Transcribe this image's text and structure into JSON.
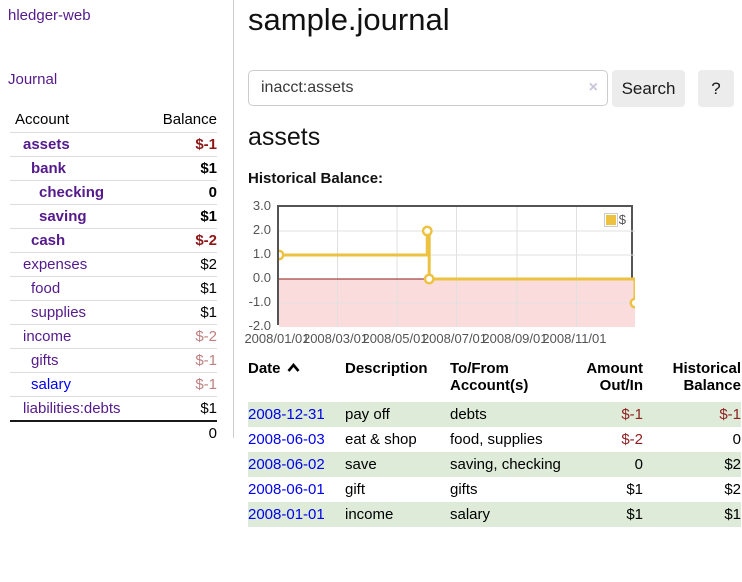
{
  "sidebar": {
    "app_title": "hledger-web",
    "journal_link": "Journal",
    "accounts": {
      "header_account": "Account",
      "header_balance": "Balance",
      "rows": [
        {
          "name": "assets",
          "balance": "$-1"
        },
        {
          "name": "bank",
          "balance": "$1"
        },
        {
          "name": "checking",
          "balance": "0"
        },
        {
          "name": "saving",
          "balance": "$1"
        },
        {
          "name": "cash",
          "balance": "$-2"
        },
        {
          "name": "expenses",
          "balance": "$2"
        },
        {
          "name": "food",
          "balance": "$1"
        },
        {
          "name": "supplies",
          "balance": "$1"
        },
        {
          "name": "income",
          "balance": "$-2"
        },
        {
          "name": "gifts",
          "balance": "$-1"
        },
        {
          "name": "salary",
          "balance": "$-1"
        },
        {
          "name": "liabilities:debts",
          "balance": "$1"
        }
      ],
      "total": "0"
    }
  },
  "header": {
    "title": "sample.journal"
  },
  "search": {
    "value": "inacct:assets",
    "clear_icon": "×",
    "search_button": "Search",
    "help_button": "?"
  },
  "account_view": {
    "title": "assets",
    "chart_heading": "Historical Balance:"
  },
  "chart_data": {
    "type": "line",
    "style": "step",
    "title": "Historical Balance",
    "xlim": [
      "2008-01-01",
      "2008-12-31"
    ],
    "ylim": [
      -2,
      3
    ],
    "y_ticks": [
      "3.0",
      "2.0",
      "1.0",
      "0.0",
      "-1.0",
      "-2.0"
    ],
    "x_ticks": [
      "2008/01/01",
      "2008/03/01",
      "2008/05/01",
      "2008/07/01",
      "2008/09/01",
      "2008/11/01"
    ],
    "series": [
      {
        "name": "$",
        "color": "#edc240",
        "points": [
          [
            "2008-01-01",
            1
          ],
          [
            "2008-06-01",
            2
          ],
          [
            "2008-06-03",
            0
          ],
          [
            "2008-12-31",
            -1
          ]
        ]
      }
    ],
    "legend": {
      "label": "$",
      "position": "top-right"
    },
    "grid": true,
    "grid_color": "#e0e0e0",
    "border_color": "#545454",
    "zero_line_color": "#8b1a1a",
    "negative_region_color": "#fbdcdc"
  },
  "register": {
    "headers": {
      "date": "Date",
      "description": "Description",
      "account": "To/From Account(s)",
      "amount": "Amount Out/In",
      "balance": "Historical Balance"
    },
    "rows": [
      {
        "date": "2008-12-31",
        "description": "pay off",
        "accounts": "debts",
        "amount": "$-1",
        "balance": "$-1"
      },
      {
        "date": "2008-06-03",
        "description": "eat & shop",
        "accounts": "food, supplies",
        "amount": "$-2",
        "balance": "0"
      },
      {
        "date": "2008-06-02",
        "description": "save",
        "accounts": "saving, checking",
        "amount": "0",
        "balance": "$2"
      },
      {
        "date": "2008-06-01",
        "description": "gift",
        "accounts": "gifts",
        "amount": "$1",
        "balance": "$2"
      },
      {
        "date": "2008-01-01",
        "description": "income",
        "accounts": "salary",
        "amount": "$1",
        "balance": "$1"
      }
    ]
  }
}
